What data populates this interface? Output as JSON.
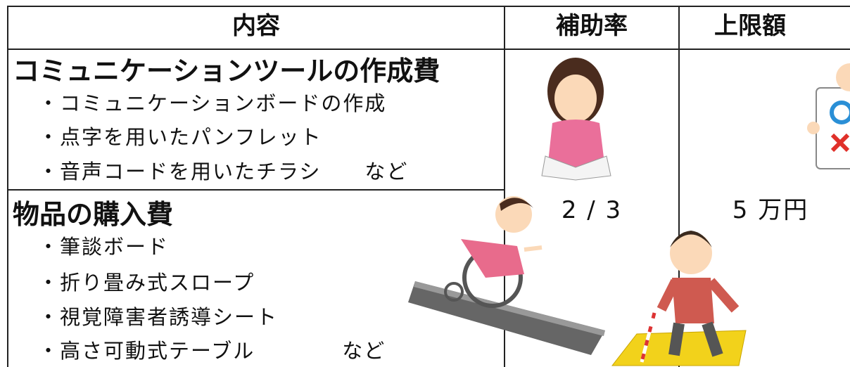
{
  "table": {
    "headers": [
      "内容",
      "補助率",
      "上限額"
    ],
    "sections": [
      {
        "title": "コミュニケーションツールの作成費",
        "items": [
          "・コミュニケーションボードの作成",
          "・点字を用いたパンフレット",
          "・音声コードを用いたチラシ　　など"
        ]
      },
      {
        "title": "物品の購入費",
        "items": [
          "・筆談ボード",
          "・折り畳み式スロープ",
          "・視覚障害者誘導シート",
          "・高さ可動式テーブル　　　　など"
        ]
      }
    ],
    "rate": "2 / 3",
    "limit": "5 万円"
  }
}
